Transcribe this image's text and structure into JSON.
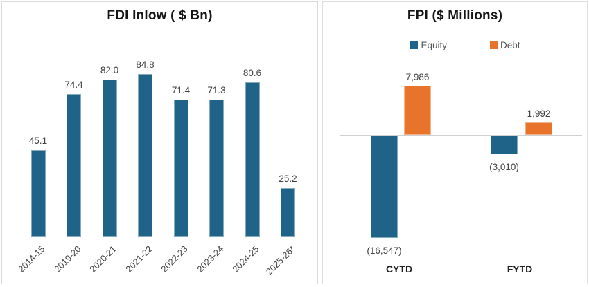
{
  "chart_data": [
    {
      "type": "bar",
      "title": "FDI Inlow ( $ Bn)",
      "categories": [
        "2014-15",
        "2019-20",
        "2020-21",
        "2021-22",
        "2022-23",
        "2023-24",
        "2024-25",
        "2025-26*"
      ],
      "values": [
        45.1,
        74.4,
        82.0,
        84.8,
        71.4,
        71.3,
        80.6,
        25.2
      ],
      "value_labels": [
        "45.1",
        "74.4",
        "82.0",
        "84.8",
        "71.4",
        "71.3",
        "80.6",
        "25.2"
      ],
      "bar_color": "#1F6488",
      "label_color": "#404040",
      "ylim": [
        0,
        90
      ],
      "grid": false,
      "legend_position": "none",
      "tick_rotation": -45
    },
    {
      "type": "bar",
      "title": "FPI ($ Millions)",
      "categories": [
        "CYTD",
        "FYTD"
      ],
      "series": [
        {
          "name": "Equity",
          "color": "#1F6488",
          "values": [
            -16547,
            -3010
          ],
          "value_labels": [
            "(16,547)",
            "(3,010)"
          ]
        },
        {
          "name": "Debt",
          "color": "#E8742C",
          "values": [
            7986,
            1992
          ],
          "value_labels": [
            "7,986",
            "1,992"
          ]
        }
      ],
      "axis_color": "#D0D0D0",
      "label_color": "#404040",
      "grid": false,
      "legend_position": "top",
      "ylim": [
        -18000,
        9000
      ]
    }
  ]
}
